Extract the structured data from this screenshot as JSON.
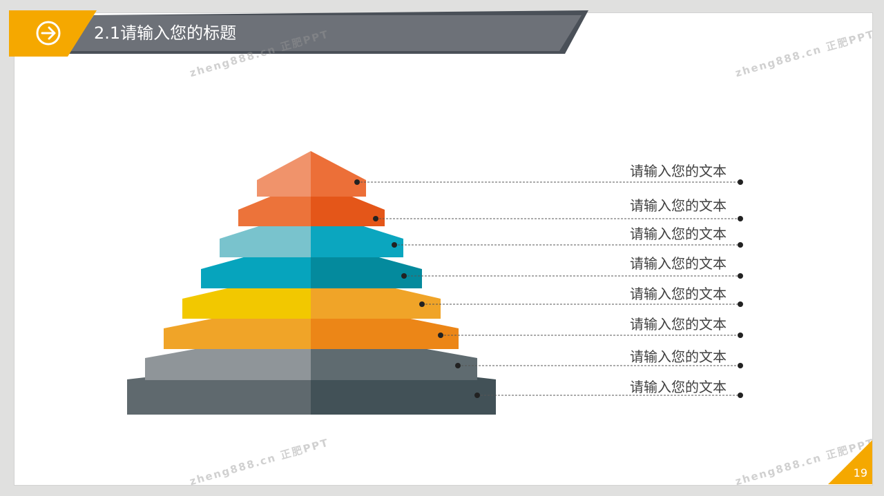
{
  "header": {
    "title": "2.1请输入您的标题",
    "icon": "arrow-right-circle-icon",
    "accent_color": "#f5a800",
    "bar_color": "#6d7178"
  },
  "pyramid": {
    "levels": [
      {
        "label": "请输入您的文本",
        "light": "#f0936b",
        "dark": "#ec6f38"
      },
      {
        "label": "请输入您的文本",
        "light": "#ec733a",
        "dark": "#e45619"
      },
      {
        "label": "请输入您的文本",
        "light": "#79c3cd",
        "dark": "#0ba6bf"
      },
      {
        "label": "请输入您的文本",
        "light": "#06a4bd",
        "dark": "#048a9d"
      },
      {
        "label": "请输入您的文本",
        "light": "#f2c800",
        "dark": "#f0a428"
      },
      {
        "label": "请输入您的文本",
        "light": "#f0a428",
        "dark": "#ec8617"
      },
      {
        "label": "请输入您的文本",
        "light": "#8f9599",
        "dark": "#5f6b70"
      },
      {
        "label": "请输入您的文本",
        "light": "#5f696e",
        "dark": "#425157"
      }
    ]
  },
  "footer": {
    "page_number": "19",
    "accent_color": "#f5a800"
  },
  "watermark": {
    "text": "zheng888.cn 正肥PPT"
  }
}
